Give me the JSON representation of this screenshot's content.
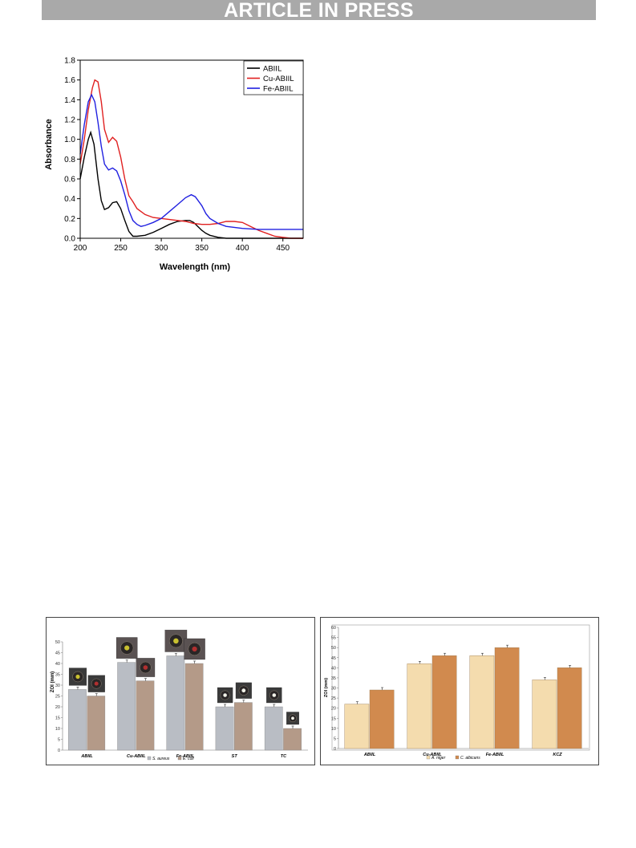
{
  "header": {
    "banner_text": "ARTICLE IN PRESS"
  },
  "chart_data": [
    {
      "type": "line",
      "xlabel": "Wavelength (nm)",
      "ylabel": "Absorbance",
      "xlim": [
        200,
        475
      ],
      "ylim": [
        0,
        1.8
      ],
      "xticks": [
        "200",
        "250",
        "300",
        "350",
        "400",
        "450"
      ],
      "yticks": [
        "0.0",
        "0.2",
        "0.4",
        "0.6",
        "0.8",
        "1.0",
        "1.2",
        "1.4",
        "1.6",
        "1.8"
      ],
      "legend_position": "top-right",
      "series": [
        {
          "name": "ABIIL",
          "color": "#000000",
          "x": [
            200,
            205,
            210,
            213,
            217,
            222,
            226,
            230,
            235,
            240,
            245,
            250,
            255,
            260,
            265,
            270,
            280,
            290,
            300,
            310,
            320,
            330,
            335,
            340,
            345,
            350,
            355,
            360,
            370,
            380,
            400,
            475
          ],
          "y": [
            0.6,
            0.82,
            1.0,
            1.07,
            0.95,
            0.6,
            0.38,
            0.29,
            0.31,
            0.36,
            0.37,
            0.3,
            0.18,
            0.07,
            0.02,
            0.02,
            0.03,
            0.06,
            0.1,
            0.14,
            0.17,
            0.18,
            0.18,
            0.16,
            0.12,
            0.08,
            0.05,
            0.03,
            0.01,
            0.0,
            0.0,
            0.0
          ]
        },
        {
          "name": "Cu-ABIIL",
          "color": "#e02020",
          "x": [
            200,
            205,
            210,
            215,
            218,
            222,
            226,
            230,
            235,
            240,
            245,
            250,
            255,
            260,
            265,
            270,
            280,
            290,
            300,
            310,
            320,
            330,
            340,
            350,
            360,
            370,
            380,
            390,
            400,
            410,
            420,
            430,
            440,
            450,
            460,
            475
          ],
          "y": [
            0.75,
            1.0,
            1.3,
            1.52,
            1.6,
            1.58,
            1.38,
            1.1,
            0.97,
            1.02,
            0.98,
            0.82,
            0.6,
            0.43,
            0.37,
            0.3,
            0.24,
            0.21,
            0.2,
            0.19,
            0.18,
            0.17,
            0.15,
            0.14,
            0.14,
            0.15,
            0.17,
            0.17,
            0.16,
            0.12,
            0.08,
            0.05,
            0.02,
            0.01,
            0.0,
            0.0
          ]
        },
        {
          "name": "Fe-ABIIL",
          "color": "#2020e0",
          "x": [
            200,
            205,
            210,
            214,
            218,
            222,
            226,
            230,
            235,
            240,
            245,
            250,
            255,
            260,
            265,
            270,
            275,
            280,
            290,
            300,
            310,
            320,
            330,
            337,
            342,
            350,
            355,
            360,
            370,
            380,
            400,
            420,
            450,
            475
          ],
          "y": [
            0.85,
            1.15,
            1.38,
            1.45,
            1.38,
            1.17,
            0.93,
            0.75,
            0.69,
            0.71,
            0.68,
            0.58,
            0.44,
            0.28,
            0.18,
            0.14,
            0.12,
            0.13,
            0.16,
            0.2,
            0.27,
            0.34,
            0.41,
            0.44,
            0.42,
            0.33,
            0.25,
            0.2,
            0.15,
            0.12,
            0.1,
            0.09,
            0.09,
            0.09
          ]
        }
      ]
    },
    {
      "type": "bar",
      "ylabel": "ZOI (mm)",
      "ylim": [
        0,
        50
      ],
      "yticks": [
        "0",
        "5",
        "10",
        "15",
        "20",
        "25",
        "30",
        "35",
        "40",
        "45",
        "50"
      ],
      "categories": [
        "ABIIL",
        "Cu-ABIIL",
        "Fe-ABIIL",
        "ST",
        "TC"
      ],
      "legend_position": "bottom-center",
      "series": [
        {
          "name": "S. aureus",
          "color": "#b9bdc4",
          "values": [
            28,
            40.5,
            43.5,
            20,
            20
          ]
        },
        {
          "name": "E. coli",
          "color": "#b49a88",
          "values": [
            25,
            32,
            40,
            22,
            10
          ]
        }
      ]
    },
    {
      "type": "bar",
      "ylabel": "ZOI (mm)",
      "ylim": [
        0,
        60
      ],
      "yticks": [
        "0",
        "5",
        "10",
        "15",
        "20",
        "25",
        "30",
        "35",
        "40",
        "45",
        "50",
        "55",
        "60"
      ],
      "categories": [
        "ABIIL",
        "Cu-ABIIL",
        "Fe-ABIIL",
        "KCZ"
      ],
      "legend_position": "bottom-center",
      "series": [
        {
          "name": "A. niger",
          "color": "#f4dcae",
          "values": [
            22,
            42,
            46,
            34
          ]
        },
        {
          "name": "C. albicans",
          "color": "#d18a4e",
          "values": [
            29,
            46,
            50,
            40
          ]
        }
      ]
    }
  ]
}
